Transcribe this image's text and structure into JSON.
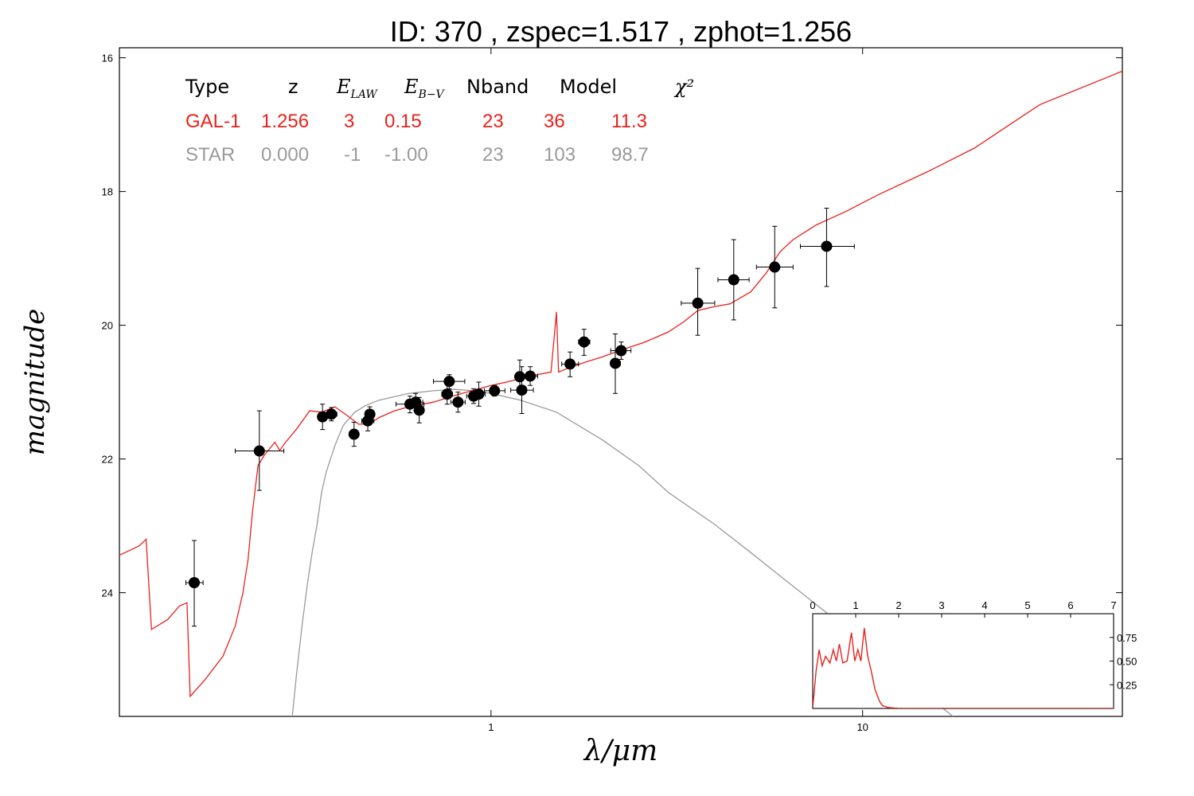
{
  "chart_data": {
    "type": "scatter",
    "title": "ID:  370   , zspec=1.517 , zphot=1.256",
    "xlabel": "λ/μm",
    "ylabel": "magnitude",
    "xscale": "log",
    "xlim": [
      0.1,
      50
    ],
    "ylim": [
      25.85,
      15.85
    ],
    "x_ticks": [
      {
        "value": 1,
        "label": "1"
      },
      {
        "value": 10,
        "label": "10"
      }
    ],
    "y_ticks": [
      {
        "value": 16,
        "label": "16"
      },
      {
        "value": 18,
        "label": "18"
      },
      {
        "value": 20,
        "label": "20"
      },
      {
        "value": 22,
        "label": "22"
      },
      {
        "value": 24,
        "label": "24"
      }
    ],
    "grid": false,
    "colors": {
      "galaxy": "#e8221d",
      "star": "#9a9a9a",
      "points": "#000000"
    },
    "table": {
      "headers": [
        "Type",
        "z",
        "E_LAW",
        "E_B-V",
        "Nband",
        "Model",
        "χ²"
      ],
      "rows": [
        {
          "cells": [
            "GAL-1",
            "1.256",
            "3",
            "0.15",
            "23",
            "36",
            "11.3"
          ],
          "color": "#e8221d"
        },
        {
          "cells": [
            "STAR",
            "0.000",
            "-1",
            "-1.00",
            "23",
            "103",
            "98.7"
          ],
          "color": "#9a9a9a"
        }
      ]
    },
    "observations": [
      {
        "x": 0.159,
        "y": 23.85,
        "xerr": [
          0.151,
          0.168
        ],
        "yerr": [
          23.22,
          24.5
        ]
      },
      {
        "x": 0.238,
        "y": 21.88,
        "xerr": [
          0.205,
          0.277
        ],
        "yerr": [
          21.28,
          22.47
        ]
      },
      {
        "x": 0.352,
        "y": 21.37,
        "xerr": [
          0.344,
          0.362
        ],
        "yerr": [
          21.18,
          21.56
        ]
      },
      {
        "x": 0.372,
        "y": 21.33,
        "xerr": [
          0.36,
          0.385
        ],
        "yerr": [
          21.23,
          21.43
        ]
      },
      {
        "x": 0.428,
        "y": 21.63,
        "xerr": [
          0.418,
          0.438
        ],
        "yerr": [
          21.45,
          21.81
        ]
      },
      {
        "x": 0.466,
        "y": 21.43,
        "xerr": [
          0.449,
          0.484
        ],
        "yerr": [
          21.28,
          21.58
        ]
      },
      {
        "x": 0.472,
        "y": 21.33,
        "xerr": [
          0.458,
          0.486
        ],
        "yerr": [
          21.22,
          21.45
        ]
      },
      {
        "x": 0.605,
        "y": 21.18,
        "xerr": [
          0.555,
          0.66
        ],
        "yerr": [
          21.06,
          21.31
        ]
      },
      {
        "x": 0.627,
        "y": 21.15,
        "xerr": [
          0.6,
          0.655
        ],
        "yerr": [
          21.02,
          21.28
        ]
      },
      {
        "x": 0.641,
        "y": 21.27,
        "xerr": [
          0.625,
          0.658
        ],
        "yerr": [
          21.08,
          21.46
        ]
      },
      {
        "x": 0.762,
        "y": 21.03,
        "xerr": [
          0.737,
          0.788
        ],
        "yerr": [
          20.88,
          21.18
        ]
      },
      {
        "x": 0.772,
        "y": 20.84,
        "xerr": [
          0.7,
          0.85
        ],
        "yerr": [
          20.74,
          20.95
        ]
      },
      {
        "x": 0.815,
        "y": 21.15,
        "xerr": [
          0.78,
          0.852
        ],
        "yerr": [
          21.0,
          21.3
        ]
      },
      {
        "x": 0.898,
        "y": 21.06,
        "xerr": [
          0.86,
          0.937
        ],
        "yerr": [
          20.95,
          21.17
        ]
      },
      {
        "x": 0.927,
        "y": 21.03,
        "xerr": [
          0.89,
          0.965
        ],
        "yerr": [
          20.85,
          21.21
        ]
      },
      {
        "x": 1.022,
        "y": 20.98,
        "xerr": [
          0.96,
          1.09
        ],
        "yerr": [
          20.9,
          21.06
        ]
      },
      {
        "x": 1.195,
        "y": 20.77,
        "xerr": [
          1.17,
          1.222
        ],
        "yerr": [
          20.52,
          21.02
        ]
      },
      {
        "x": 1.21,
        "y": 20.97,
        "xerr": [
          1.13,
          1.3
        ],
        "yerr": [
          20.62,
          21.32
        ]
      },
      {
        "x": 1.275,
        "y": 20.76,
        "xerr": [
          1.22,
          1.335
        ],
        "yerr": [
          20.62,
          20.9
        ]
      },
      {
        "x": 1.632,
        "y": 20.58,
        "xerr": [
          1.55,
          1.72
        ],
        "yerr": [
          20.4,
          20.77
        ]
      },
      {
        "x": 1.78,
        "y": 20.25,
        "xerr": [
          1.72,
          1.845
        ],
        "yerr": [
          20.06,
          20.45
        ]
      },
      {
        "x": 2.16,
        "y": 20.57,
        "xerr": [
          2.1,
          2.23
        ],
        "yerr": [
          20.13,
          21.02
        ]
      },
      {
        "x": 2.24,
        "y": 20.38,
        "xerr": [
          2.1,
          2.38
        ],
        "yerr": [
          20.25,
          20.51
        ]
      },
      {
        "x": 3.6,
        "y": 19.67,
        "xerr": [
          3.25,
          4.0
        ],
        "yerr": [
          19.15,
          20.15
        ]
      },
      {
        "x": 4.5,
        "y": 19.32,
        "xerr": [
          4.08,
          4.95
        ],
        "yerr": [
          18.72,
          19.92
        ]
      },
      {
        "x": 5.8,
        "y": 19.13,
        "xerr": [
          5.18,
          6.5
        ],
        "yerr": [
          18.52,
          19.74
        ]
      },
      {
        "x": 8.0,
        "y": 18.82,
        "xerr": [
          6.8,
          9.5
        ],
        "yerr": [
          18.25,
          19.42
        ]
      }
    ],
    "galaxy_model": [
      [
        0.1,
        23.44
      ],
      [
        0.113,
        23.3
      ],
      [
        0.118,
        23.2
      ],
      [
        0.122,
        24.55
      ],
      [
        0.135,
        24.4
      ],
      [
        0.145,
        24.2
      ],
      [
        0.152,
        24.15
      ],
      [
        0.155,
        25.55
      ],
      [
        0.17,
        25.3
      ],
      [
        0.19,
        24.95
      ],
      [
        0.205,
        24.5
      ],
      [
        0.215,
        24.0
      ],
      [
        0.222,
        23.5
      ],
      [
        0.228,
        22.8
      ],
      [
        0.236,
        22.1
      ],
      [
        0.245,
        21.95
      ],
      [
        0.262,
        21.75
      ],
      [
        0.27,
        21.87
      ],
      [
        0.28,
        21.75
      ],
      [
        0.3,
        21.55
      ],
      [
        0.325,
        21.28
      ],
      [
        0.35,
        21.3
      ],
      [
        0.38,
        21.22
      ],
      [
        0.41,
        21.35
      ],
      [
        0.44,
        21.48
      ],
      [
        0.47,
        21.48
      ],
      [
        0.5,
        21.38
      ],
      [
        0.55,
        21.28
      ],
      [
        0.6,
        21.22
      ],
      [
        0.7,
        21.15
      ],
      [
        0.8,
        21.05
      ],
      [
        0.9,
        20.97
      ],
      [
        1.0,
        20.9
      ],
      [
        1.1,
        20.85
      ],
      [
        1.2,
        20.8
      ],
      [
        1.3,
        20.75
      ],
      [
        1.45,
        20.7
      ],
      [
        1.5,
        19.8
      ],
      [
        1.52,
        20.7
      ],
      [
        1.6,
        20.65
      ],
      [
        1.8,
        20.55
      ],
      [
        2.0,
        20.47
      ],
      [
        2.3,
        20.35
      ],
      [
        2.6,
        20.25
      ],
      [
        3.0,
        20.1
      ],
      [
        3.3,
        19.95
      ],
      [
        3.6,
        19.78
      ],
      [
        4.0,
        19.72
      ],
      [
        4.4,
        19.68
      ],
      [
        5.0,
        19.5
      ],
      [
        5.5,
        19.22
      ],
      [
        6.0,
        18.9
      ],
      [
        6.5,
        18.72
      ],
      [
        7.5,
        18.5
      ],
      [
        9.0,
        18.3
      ],
      [
        11.0,
        18.05
      ],
      [
        15.0,
        17.7
      ],
      [
        20.0,
        17.35
      ],
      [
        30.0,
        16.7
      ],
      [
        50.0,
        16.2
      ]
    ],
    "star_model": [
      [
        0.29,
        26.0
      ],
      [
        0.3,
        25.2
      ],
      [
        0.31,
        24.5
      ],
      [
        0.32,
        23.9
      ],
      [
        0.33,
        23.4
      ],
      [
        0.34,
        23.0
      ],
      [
        0.35,
        22.5
      ],
      [
        0.36,
        22.2
      ],
      [
        0.38,
        21.8
      ],
      [
        0.4,
        21.5
      ],
      [
        0.43,
        21.3
      ],
      [
        0.46,
        21.2
      ],
      [
        0.5,
        21.12
      ],
      [
        0.6,
        21.02
      ],
      [
        0.7,
        20.98
      ],
      [
        0.8,
        20.96
      ],
      [
        0.9,
        20.98
      ],
      [
        1.0,
        21.02
      ],
      [
        1.2,
        21.12
      ],
      [
        1.5,
        21.3
      ],
      [
        2.0,
        21.72
      ],
      [
        2.5,
        22.1
      ],
      [
        3.0,
        22.5
      ],
      [
        4.0,
        22.98
      ],
      [
        5.0,
        23.4
      ],
      [
        6.0,
        23.75
      ],
      [
        8.0,
        24.3
      ],
      [
        10.0,
        24.78
      ],
      [
        12.0,
        25.1
      ],
      [
        15.0,
        25.55
      ],
      [
        17.5,
        25.85
      ]
    ],
    "inset": {
      "xlim": [
        0,
        7
      ],
      "ylim": [
        0,
        1.0
      ],
      "x_ticks": [
        {
          "value": 0,
          "label": "0"
        },
        {
          "value": 1,
          "label": "1"
        },
        {
          "value": 2,
          "label": "2"
        },
        {
          "value": 3,
          "label": "3"
        },
        {
          "value": 4,
          "label": "4"
        },
        {
          "value": 5,
          "label": "5"
        },
        {
          "value": 6,
          "label": "6"
        },
        {
          "value": 7,
          "label": "7"
        }
      ],
      "y_ticks": [
        {
          "value": 0.25,
          "label": "0.25"
        },
        {
          "value": 0.5,
          "label": "0.50"
        },
        {
          "value": 0.75,
          "label": "0.75"
        }
      ],
      "pdz": [
        [
          0.0,
          0.01
        ],
        [
          0.08,
          0.4
        ],
        [
          0.15,
          0.62
        ],
        [
          0.22,
          0.45
        ],
        [
          0.3,
          0.55
        ],
        [
          0.4,
          0.48
        ],
        [
          0.48,
          0.62
        ],
        [
          0.55,
          0.5
        ],
        [
          0.62,
          0.68
        ],
        [
          0.7,
          0.48
        ],
        [
          0.8,
          0.5
        ],
        [
          0.9,
          0.8
        ],
        [
          0.98,
          0.5
        ],
        [
          1.05,
          0.62
        ],
        [
          1.12,
          0.5
        ],
        [
          1.2,
          0.85
        ],
        [
          1.28,
          0.55
        ],
        [
          1.36,
          0.4
        ],
        [
          1.45,
          0.2
        ],
        [
          1.55,
          0.08
        ],
        [
          1.62,
          0.03
        ],
        [
          1.75,
          0.01
        ],
        [
          2.0,
          0.0
        ],
        [
          7.0,
          0.0
        ]
      ]
    }
  }
}
